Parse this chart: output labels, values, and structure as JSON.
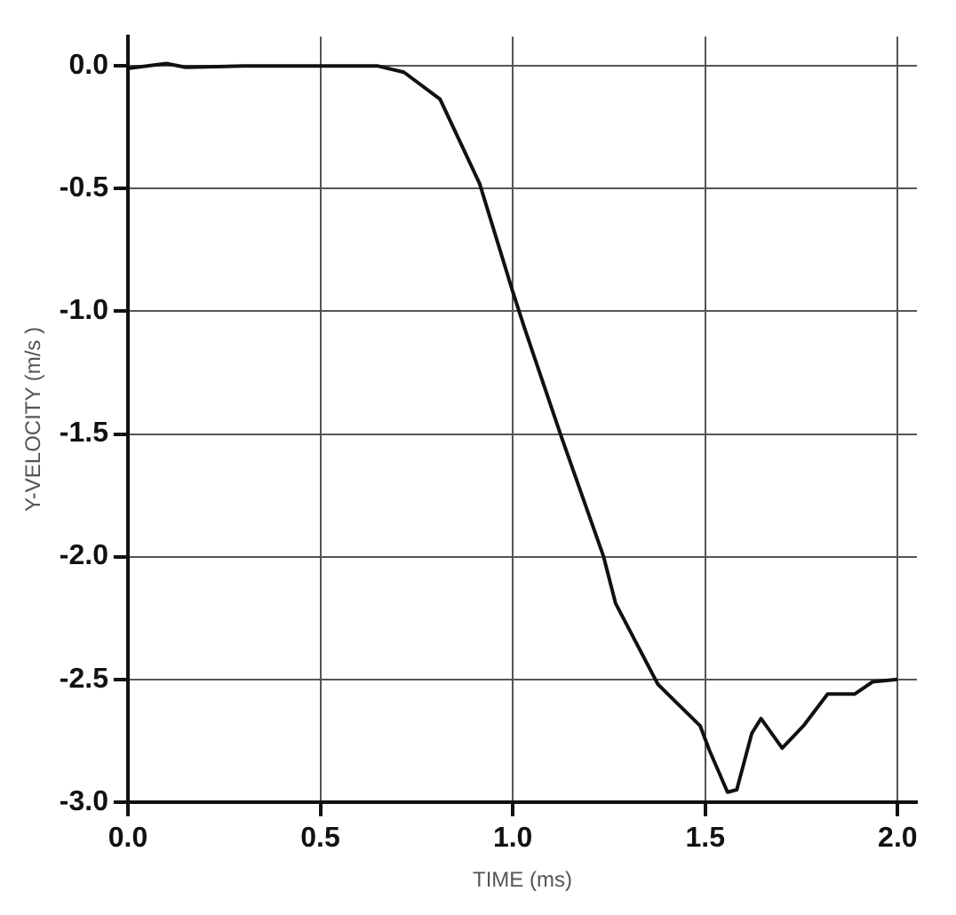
{
  "chart_data": {
    "type": "line",
    "xlabel": "TIME (ms)",
    "ylabel": "Y-VELOCITY (m/s )",
    "xlim": [
      0,
      2.05
    ],
    "ylim": [
      -3.0,
      0.12
    ],
    "xticks": [
      {
        "value": 0,
        "label": "0.0"
      },
      {
        "value": 0.5,
        "label": "0.5"
      },
      {
        "value": 1,
        "label": "1.0"
      },
      {
        "value": 1.5,
        "label": "1.5"
      },
      {
        "value": 2,
        "label": "2.0"
      }
    ],
    "yticks": [
      {
        "value": 0,
        "label": "0.0"
      },
      {
        "value": -0.5,
        "label": "-0.5"
      },
      {
        "value": -1,
        "label": "-1.0"
      },
      {
        "value": -1.5,
        "label": "-1.5"
      },
      {
        "value": -2,
        "label": "-2.0"
      },
      {
        "value": -2.5,
        "label": "-2.5"
      },
      {
        "value": -3,
        "label": "-3.0"
      }
    ],
    "grid": true,
    "legend": false,
    "marker": "none",
    "line_style": "solid",
    "series": [
      {
        "color": "#111111",
        "x": [
          0,
          0.05,
          0.1,
          0.15,
          0.3,
          0.5,
          0.65,
          0.717,
          0.811,
          0.914,
          1.0,
          1.031,
          1.126,
          1.236,
          1.267,
          1.377,
          1.487,
          1.511,
          1.558,
          1.582,
          1.621,
          1.645,
          1.7,
          1.755,
          1.818,
          1.888,
          1.935,
          2.0
        ],
        "values": [
          -0.01,
          0,
          0.01,
          -0.005,
          0,
          0,
          0,
          -0.025,
          -0.135,
          -0.48,
          -0.92,
          -1.07,
          -1.51,
          -2.0,
          -2.19,
          -2.52,
          -2.69,
          -2.79,
          -2.96,
          -2.95,
          -2.72,
          -2.66,
          -2.78,
          -2.69,
          -2.56,
          -2.56,
          -2.51,
          -2.5
        ]
      }
    ]
  }
}
